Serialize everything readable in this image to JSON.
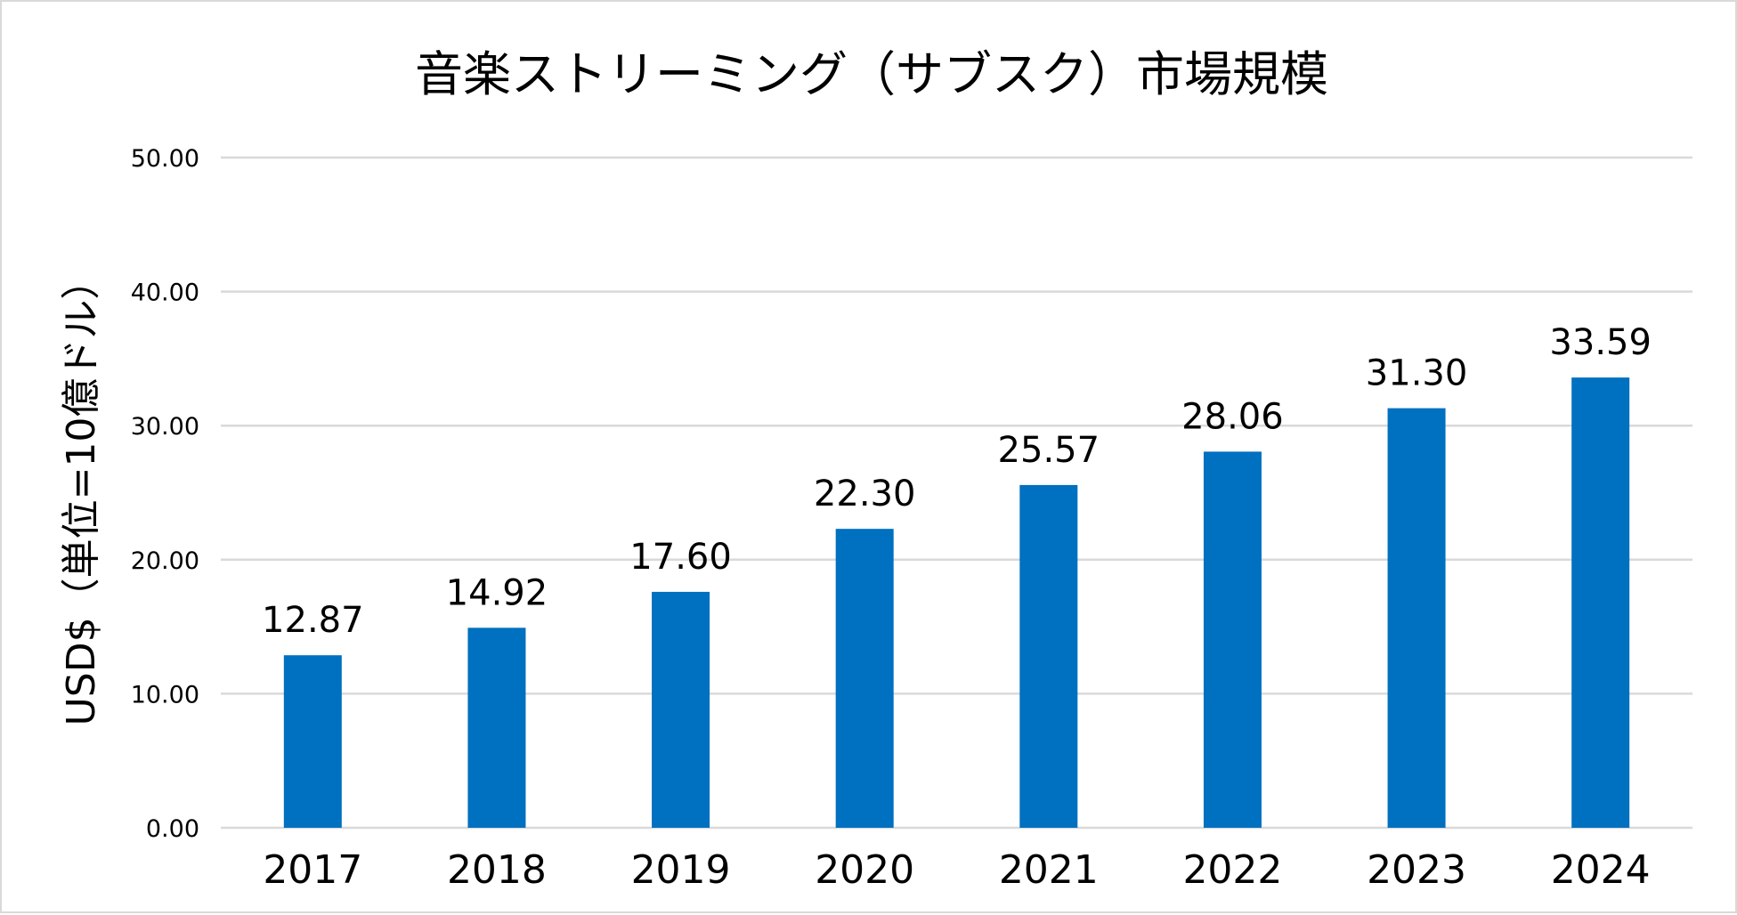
{
  "chart_data": {
    "type": "bar",
    "title": "音楽ストリーミング（サブスク）市場規模",
    "xlabel": "",
    "ylabel": "USD$（単位=10億ドル）",
    "categories": [
      "2017",
      "2018",
      "2019",
      "2020",
      "2021",
      "2022",
      "2023",
      "2024"
    ],
    "values": [
      12.87,
      14.92,
      17.6,
      22.3,
      25.57,
      28.06,
      31.3,
      33.59
    ],
    "data_labels": [
      "12.87",
      "14.92",
      "17.60",
      "22.30",
      "25.57",
      "28.06",
      "31.30",
      "33.59"
    ],
    "ylim": [
      0,
      50
    ],
    "yticks": [
      "0.00",
      "10.00",
      "20.00",
      "30.00",
      "40.00",
      "50.00"
    ],
    "grid": true,
    "legend": "none",
    "bar_color": "#0070C0",
    "grid_color": "#d9d9d9"
  }
}
